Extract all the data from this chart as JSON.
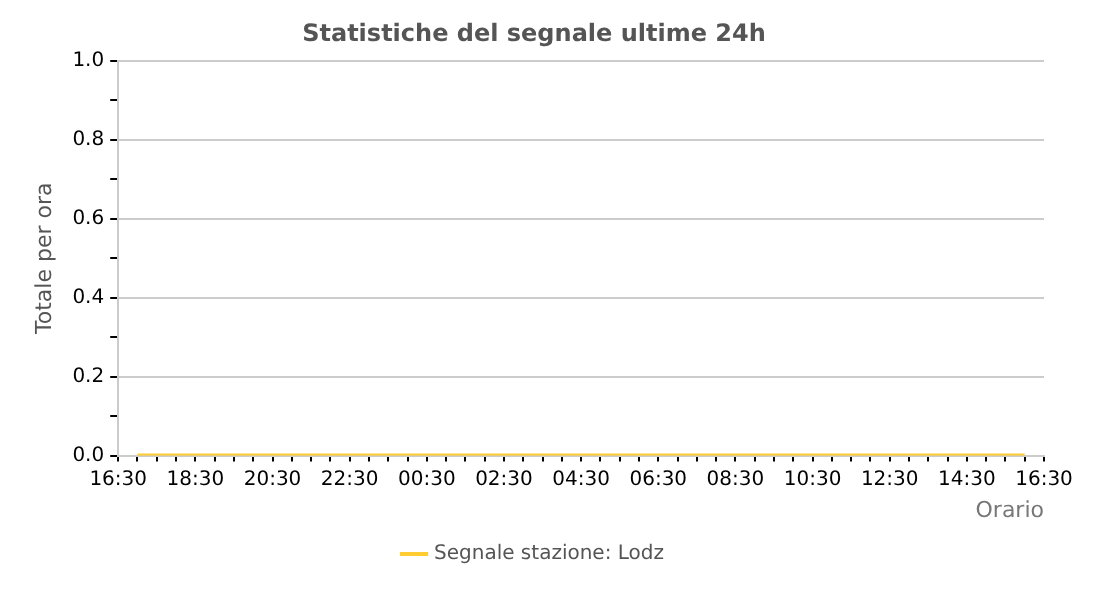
{
  "chart_data": {
    "type": "line",
    "title": "Statistiche del segnale ultime 24h",
    "xlabel": "Orario",
    "ylabel": "Totale per ora",
    "categories": [
      "16:30",
      null,
      null,
      null,
      "18:30",
      null,
      null,
      null,
      "20:30",
      null,
      null,
      null,
      "22:30",
      null,
      null,
      null,
      "00:30",
      null,
      null,
      null,
      "02:30",
      null,
      null,
      null,
      "04:30",
      null,
      null,
      null,
      "06:30",
      null,
      null,
      null,
      "08:30",
      null,
      null,
      null,
      "10:30",
      null,
      null,
      null,
      "12:30",
      null,
      null,
      null,
      "14:30",
      null,
      null,
      null,
      "16:30"
    ],
    "series": [
      {
        "name": "Segnale stazione: Lodz",
        "color": "#ffcc33",
        "values": [
          null,
          0,
          0,
          0,
          0,
          0,
          0,
          0,
          0,
          0,
          0,
          0,
          0,
          0,
          0,
          0,
          0,
          0,
          0,
          0,
          0,
          0,
          0,
          0,
          0,
          0,
          0,
          0,
          0,
          0,
          0,
          0,
          0,
          0,
          0,
          0,
          0,
          0,
          0,
          0,
          0,
          0,
          0,
          0,
          0,
          0,
          0,
          0,
          null
        ]
      }
    ],
    "ylim": [
      0,
      1
    ],
    "yticks": [
      {
        "value": 0,
        "label": "0.0"
      },
      {
        "value": 0.1,
        "label": null
      },
      {
        "value": 0.2,
        "label": "0.2"
      },
      {
        "value": 0.3,
        "label": null
      },
      {
        "value": 0.4,
        "label": "0.4"
      },
      {
        "value": 0.5,
        "label": null
      },
      {
        "value": 0.6,
        "label": "0.6"
      },
      {
        "value": 0.7,
        "label": null
      },
      {
        "value": 0.8,
        "label": "0.8"
      },
      {
        "value": 0.9,
        "label": null
      },
      {
        "value": 1,
        "label": "1.0"
      }
    ],
    "grid": "y",
    "legend": "bottom",
    "marker": "none",
    "line_style": "solid"
  }
}
